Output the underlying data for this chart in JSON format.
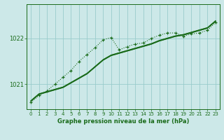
{
  "background_color": "#cce8e8",
  "grid_color": "#99cccc",
  "line_color": "#1a6b1a",
  "xlabel": "Graphe pression niveau de la mer (hPa)",
  "xlabel_color": "#1a6b1a",
  "yticks": [
    1021,
    1022
  ],
  "ylim": [
    1020.45,
    1022.75
  ],
  "xlim": [
    -0.5,
    23.5
  ],
  "xticks": [
    0,
    1,
    2,
    3,
    4,
    5,
    6,
    7,
    8,
    9,
    10,
    11,
    12,
    13,
    14,
    15,
    16,
    17,
    18,
    19,
    20,
    21,
    22,
    23
  ],
  "series_solid": [
    [
      1020.63,
      1020.78,
      1020.83,
      1020.88,
      1020.93,
      1021.03,
      1021.13,
      1021.23,
      1021.38,
      1021.53,
      1021.63,
      1021.68,
      1021.73,
      1021.78,
      1021.83,
      1021.88,
      1021.95,
      1022.0,
      1022.05,
      1022.08,
      1022.13,
      1022.18,
      1022.23,
      1022.38
    ],
    [
      1020.63,
      1020.78,
      1020.83,
      1020.88,
      1020.93,
      1021.03,
      1021.13,
      1021.23,
      1021.38,
      1021.53,
      1021.63,
      1021.68,
      1021.73,
      1021.78,
      1021.83,
      1021.88,
      1021.95,
      1022.0,
      1022.05,
      1022.08,
      1022.13,
      1022.18,
      1022.23,
      1022.38
    ],
    [
      1020.63,
      1020.78,
      1020.83,
      1020.88,
      1020.93,
      1021.03,
      1021.13,
      1021.23,
      1021.38,
      1021.53,
      1021.63,
      1021.68,
      1021.73,
      1021.78,
      1021.83,
      1021.88,
      1021.95,
      1022.0,
      1022.05,
      1022.08,
      1022.13,
      1022.18,
      1022.23,
      1022.38
    ],
    [
      1020.63,
      1020.78,
      1020.83,
      1020.88,
      1020.93,
      1021.03,
      1021.13,
      1021.23,
      1021.38,
      1021.53,
      1021.63,
      1021.68,
      1021.73,
      1021.78,
      1021.83,
      1021.88,
      1021.95,
      1022.0,
      1022.05,
      1022.08,
      1022.13,
      1022.18,
      1022.23,
      1022.38
    ]
  ],
  "series_dotted": [
    1020.6,
    1020.75,
    1020.85,
    1021.0,
    1021.15,
    1021.3,
    1021.5,
    1021.65,
    1021.8,
    1021.97,
    1022.02,
    1021.75,
    1021.82,
    1021.88,
    1021.9,
    1022.0,
    1022.07,
    1022.12,
    1022.12,
    1022.05,
    1022.1,
    1022.12,
    1022.18,
    1022.35
  ]
}
